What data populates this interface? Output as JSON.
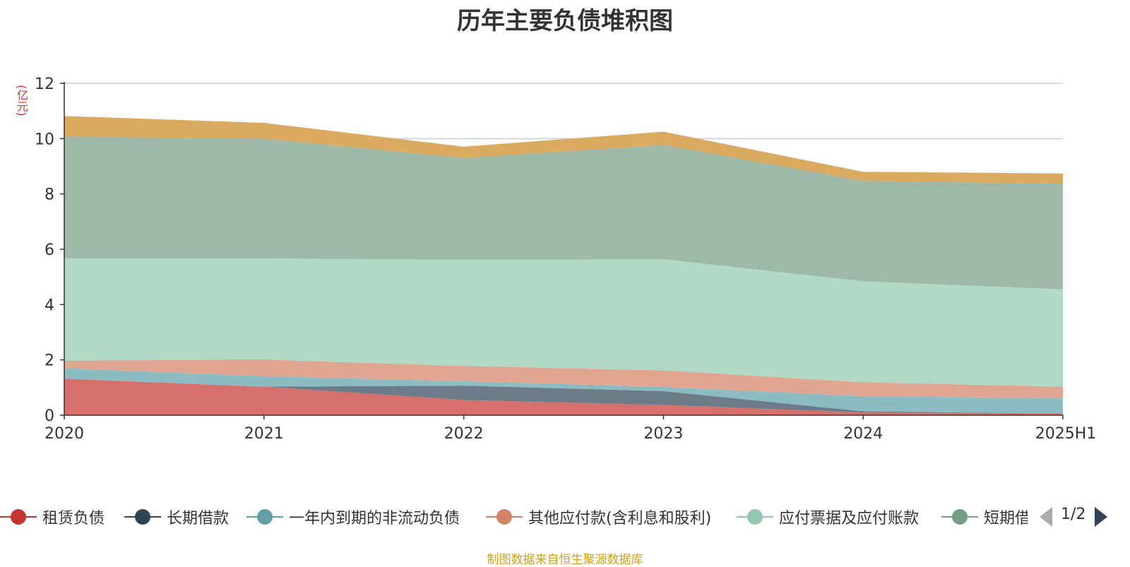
{
  "title": "历年主要负债堆积图",
  "y_unit": "(亿元)",
  "source_note": "制图数据来自恒生聚源数据库",
  "legend_page": "1/2",
  "chart_data": {
    "type": "area",
    "stacked": true,
    "title": "历年主要负债堆积图",
    "ylabel": "(亿元)",
    "x": [
      "2020",
      "2021",
      "2022",
      "2023",
      "2024",
      "2025H1"
    ],
    "ylim": [
      0,
      12
    ],
    "yticks": [
      0,
      2,
      4,
      6,
      8,
      10,
      12
    ],
    "grid": true,
    "legend_position": "bottom",
    "series": [
      {
        "name": "租赁负债",
        "color": "#d5706d",
        "legend_color": "#c23531",
        "values": [
          1.32,
          1.03,
          0.55,
          0.37,
          0.1,
          0.06
        ]
      },
      {
        "name": "长期借款",
        "color": "#6b7c88",
        "legend_color": "#2f4554",
        "values": [
          0.0,
          0.0,
          0.52,
          0.5,
          0.04,
          0.0
        ]
      },
      {
        "name": "一年内到期的非流动负债",
        "color": "#8cbcc2",
        "legend_color": "#61a0a8",
        "values": [
          0.38,
          0.38,
          0.16,
          0.15,
          0.55,
          0.55
        ]
      },
      {
        "name": "其他应付款(含利息和股利)",
        "color": "#e0a590",
        "legend_color": "#d48265",
        "values": [
          0.27,
          0.6,
          0.55,
          0.6,
          0.5,
          0.42
        ]
      },
      {
        "name": "应付票据及应付账款",
        "color": "#b2d8c6",
        "legend_color": "#91c7ae",
        "values": [
          3.7,
          3.66,
          3.84,
          4.02,
          3.65,
          3.52
        ]
      },
      {
        "name": "短期借款",
        "color": "#9eb9a8",
        "legend_color": "#749f83",
        "values": [
          4.4,
          4.33,
          3.68,
          4.13,
          3.63,
          3.82
        ]
      },
      {
        "name": "",
        "color": "#d9aa60",
        "legend_color": "#ca8622",
        "values": [
          0.75,
          0.57,
          0.41,
          0.48,
          0.33,
          0.37
        ]
      }
    ]
  }
}
